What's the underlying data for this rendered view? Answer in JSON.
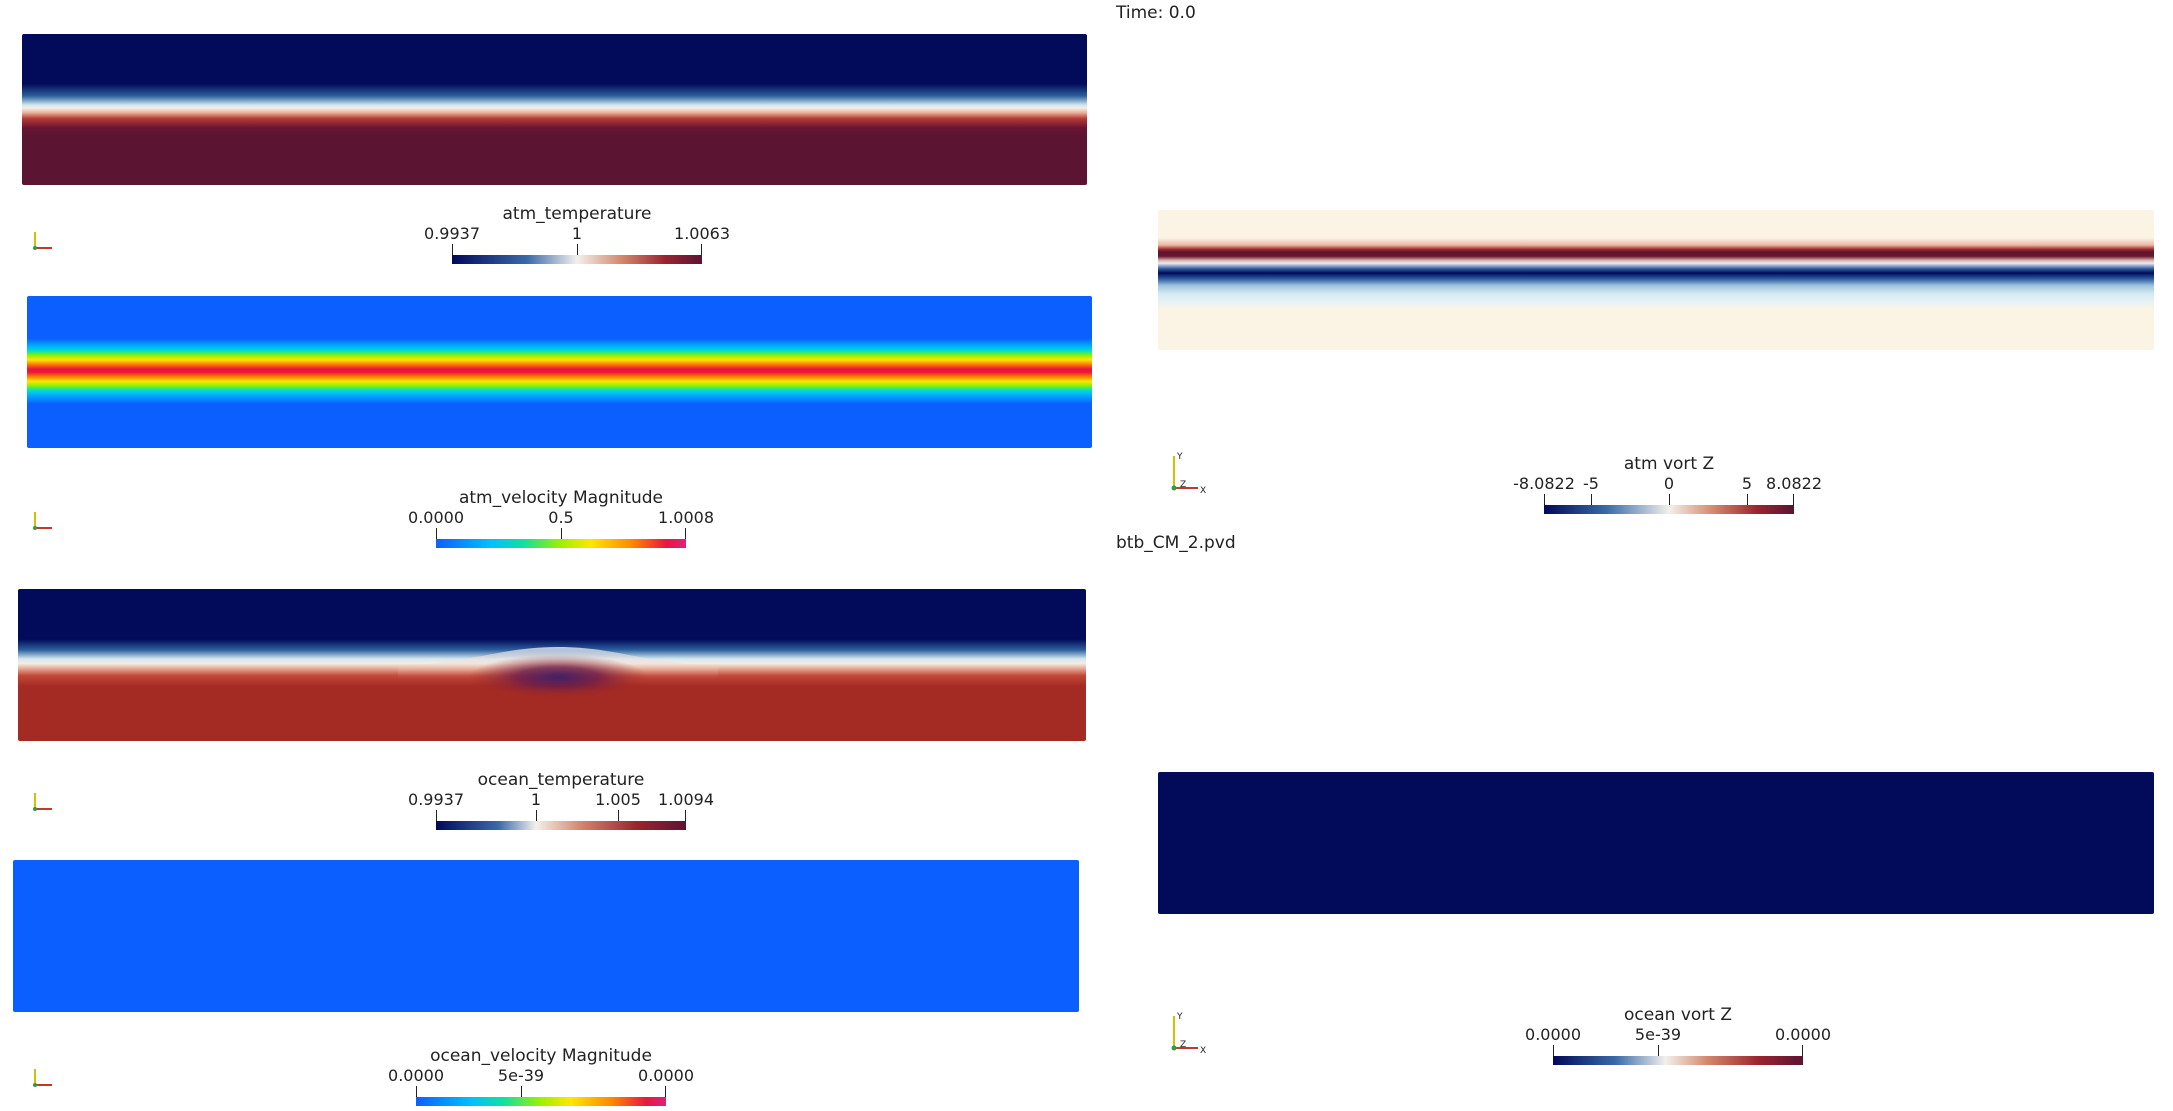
{
  "header": {
    "time_label": "Time: 0.0",
    "file_label": "btb_CM_2.pvd"
  },
  "panels": {
    "atm_temperature": {
      "title": "atm_temperature",
      "colormap": "diverging-blue-red",
      "ticks": [
        "0.9937",
        "1",
        "1.0063"
      ]
    },
    "atm_velocity": {
      "title": "atm_velocity Magnitude",
      "colormap": "jet-rainbow",
      "ticks": [
        "0.0000",
        "0.5",
        "1.0008"
      ]
    },
    "ocean_temperature": {
      "title": "ocean_temperature",
      "colormap": "diverging-blue-red",
      "ticks": [
        "0.9937",
        "1",
        "1.005",
        "1.0094"
      ]
    },
    "ocean_velocity": {
      "title": "ocean_velocity Magnitude",
      "colormap": "jet-rainbow",
      "ticks": [
        "0.0000",
        "5e-39",
        "0.0000"
      ]
    },
    "atm_vort": {
      "title": "atm vort Z",
      "colormap": "diverging-blue-red",
      "ticks": [
        "-8.0822",
        "-5",
        "0",
        "5",
        "8.0822"
      ]
    },
    "ocean_vort": {
      "title": "ocean vort Z",
      "colormap": "diverging-blue-red",
      "ticks": [
        "0.0000",
        "5e-39",
        "0.0000"
      ]
    }
  },
  "axes_triad": {
    "y": "Y",
    "z": "Z",
    "x": "X"
  },
  "colors": {
    "navy": "#020a5a",
    "maroon": "#5c1433",
    "brick": "#a42a24",
    "jet_blue": "#0b5fff",
    "cream": "#fbf3e3"
  }
}
